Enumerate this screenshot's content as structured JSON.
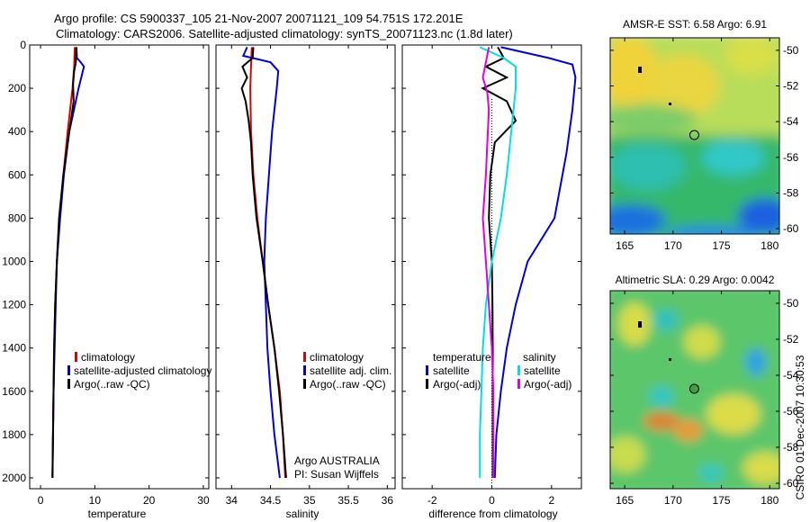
{
  "header": {
    "line1": "Argo profile: CS 5900337_105 21-Nov-2007 20071121_109 54.751S 172.201E",
    "line2": "Climatology: CARS2006. Satellite-adjusted climatology: synTS_20071123.nc (1.8d later)"
  },
  "footer_vertical": "CSIRO 01-Dec-2007 10:30:53",
  "colors": {
    "climatology": "#e00000",
    "satellite": "#0000dd",
    "argo": "#000000",
    "salinity_satellite": "#00e0e0",
    "salinity_argo": "#e000e0"
  },
  "chart_data": [
    {
      "type": "line",
      "xlabel": "temperature",
      "xlim": [
        -2,
        31
      ],
      "ylim": [
        2050,
        0
      ],
      "xticks": [
        "0",
        "10",
        "20",
        "30"
      ],
      "xtick_values": [
        0,
        10,
        20,
        30
      ],
      "yticks": [
        "0",
        "200",
        "400",
        "600",
        "800",
        "1000",
        "1200",
        "1400",
        "1600",
        "1800",
        "2000"
      ],
      "ytick_values": [
        0,
        200,
        400,
        600,
        800,
        1000,
        1200,
        1400,
        1600,
        1800,
        2000
      ],
      "legend": [
        "climatology",
        "satellite-adjusted climatology",
        "Argo(..raw -QC)"
      ],
      "series": [
        {
          "name": "climatology",
          "depth": [
            10,
            100,
            200,
            400,
            600,
            800,
            1000,
            1200,
            1400,
            1600,
            1800,
            2000
          ],
          "values": [
            6.3,
            6.2,
            5.9,
            5.0,
            4.2,
            3.5,
            3.0,
            2.7,
            2.5,
            2.4,
            2.3,
            2.2
          ]
        },
        {
          "name": "satellite-adjusted climatology",
          "depth": [
            10,
            60,
            80,
            100,
            150,
            200,
            400,
            600,
            800,
            1000,
            1200,
            1400,
            1600,
            1800,
            2000
          ],
          "values": [
            6.6,
            6.7,
            7.4,
            8.0,
            7.5,
            7.0,
            5.3,
            4.3,
            3.6,
            3.0,
            2.8,
            2.6,
            2.4,
            2.3,
            2.2
          ]
        },
        {
          "name": "Argo(..raw -QC)",
          "depth": [
            10,
            80,
            120,
            180,
            260,
            350,
            450,
            600,
            800,
            1000,
            1200,
            1400,
            1600,
            1800,
            2000
          ],
          "values": [
            6.6,
            6.5,
            6.2,
            6.0,
            6.1,
            5.6,
            5.0,
            4.2,
            3.4,
            3.0,
            2.7,
            2.5,
            2.4,
            2.3,
            2.2
          ]
        }
      ]
    },
    {
      "type": "line",
      "xlabel": "salinity",
      "xlim": [
        33.8,
        36.1
      ],
      "ylim": [
        2050,
        0
      ],
      "xticks": [
        "34",
        "34.5",
        "35",
        "35.5",
        "36"
      ],
      "xtick_values": [
        34,
        34.5,
        35,
        35.5,
        36
      ],
      "legend": [
        "climatology",
        "satellite adj. clim.",
        "Argo(..raw -QC)"
      ],
      "annotations": [
        "Argo AUSTRALIA",
        "PI: Susan Wijffels"
      ],
      "series": [
        {
          "name": "climatology",
          "depth": [
            10,
            100,
            200,
            400,
            600,
            800,
            1000,
            1200,
            1400,
            1600,
            1800,
            2000
          ],
          "values": [
            34.26,
            34.25,
            34.24,
            34.25,
            34.28,
            34.33,
            34.4,
            34.47,
            34.55,
            34.62,
            34.66,
            34.69
          ]
        },
        {
          "name": "satellite adj. clim.",
          "depth": [
            10,
            50,
            80,
            120,
            200,
            400,
            600,
            800,
            1000,
            1200,
            1400,
            1600,
            1800,
            2000
          ],
          "values": [
            34.2,
            34.15,
            34.5,
            34.6,
            34.58,
            34.52,
            34.48,
            34.44,
            34.42,
            34.44,
            34.46,
            34.5,
            34.55,
            34.62
          ]
        },
        {
          "name": "Argo(..raw -QC)",
          "depth": [
            10,
            60,
            100,
            150,
            200,
            260,
            350,
            450,
            600,
            800,
            1000,
            1200,
            1400,
            1600,
            1800,
            2000
          ],
          "values": [
            34.28,
            34.27,
            34.14,
            34.2,
            34.13,
            34.18,
            34.22,
            34.25,
            34.27,
            34.32,
            34.4,
            34.47,
            34.55,
            34.61,
            34.66,
            34.7
          ]
        }
      ]
    },
    {
      "type": "line",
      "xlabel": "difference from climatology",
      "xlim": [
        -3,
        3
      ],
      "ylim": [
        2050,
        0
      ],
      "xticks": [
        "-2",
        "0",
        "2"
      ],
      "xtick_values": [
        -2,
        0,
        2
      ],
      "legend_titles": [
        "temperature",
        "salinity"
      ],
      "legend": [
        "satellite",
        "Argo(-adj)",
        "satellite",
        "Argo(-adj)"
      ],
      "series": [
        {
          "name": "temperature satellite",
          "depth": [
            10,
            60,
            90,
            150,
            300,
            500,
            800,
            1000,
            1200,
            1400,
            1600,
            1800,
            2000
          ],
          "values": [
            0.3,
            1.9,
            2.7,
            2.8,
            2.7,
            2.5,
            2.1,
            1.2,
            0.8,
            0.5,
            0.3,
            0.15,
            0.1
          ]
        },
        {
          "name": "temperature Argo(-adj)",
          "depth": [
            10,
            60,
            100,
            150,
            200,
            260,
            350,
            450,
            600,
            800,
            1000,
            1200,
            1400,
            1600,
            1800,
            2000
          ],
          "values": [
            0.2,
            0.4,
            -0.2,
            0.5,
            -0.3,
            0.5,
            0.8,
            0.1,
            -0.05,
            -0.1,
            0.0,
            0.02,
            0.03,
            0.03,
            0.03,
            0.03
          ]
        },
        {
          "name": "salinity satellite",
          "depth": [
            10,
            60,
            100,
            200,
            400,
            600,
            800,
            1000,
            1200,
            1400,
            1600,
            1800,
            2000
          ],
          "values": [
            -0.4,
            0.4,
            0.8,
            0.8,
            0.65,
            0.5,
            0.3,
            0.0,
            -0.2,
            -0.3,
            -0.35,
            -0.4,
            -0.4
          ]
        },
        {
          "name": "salinity Argo(-adj)",
          "depth": [
            10,
            80,
            150,
            220,
            300,
            450,
            600,
            800,
            1000,
            1200,
            1400,
            1600,
            1800,
            2000
          ],
          "values": [
            -0.1,
            -0.2,
            -0.3,
            -0.15,
            -0.1,
            -0.15,
            -0.2,
            -0.3,
            -0.2,
            -0.1,
            0.0,
            0.05,
            0.05,
            0.05
          ]
        }
      ]
    },
    {
      "type": "heatmap",
      "title": "AMSR-E SST: 6.58 Argo: 6.91",
      "xlim": [
        163.5,
        181
      ],
      "ylim": [
        -60.3,
        -49.3
      ],
      "xticks": [
        "165",
        "170",
        "175",
        "180"
      ],
      "xtick_values": [
        165,
        170,
        175,
        180
      ],
      "yticks": [
        "-50",
        "-52",
        "-54",
        "-56",
        "-58",
        "-60"
      ],
      "ytick_values": [
        -50,
        -52,
        -54,
        -56,
        -58,
        -60
      ],
      "marker": {
        "lon": 172.2,
        "lat": -54.75
      }
    },
    {
      "type": "heatmap",
      "title": "Altimetric SLA: 0.29 Argo: 0.0042",
      "xlim": [
        163.5,
        181
      ],
      "ylim": [
        -60.3,
        -49.3
      ],
      "xticks": [
        "165",
        "170",
        "175",
        "180"
      ],
      "xtick_values": [
        165,
        170,
        175,
        180
      ],
      "yticks": [
        "-50",
        "-52",
        "-54",
        "-56",
        "-58",
        "-60"
      ],
      "ytick_values": [
        -50,
        -52,
        -54,
        -56,
        -58,
        -60
      ],
      "marker": {
        "lon": 172.2,
        "lat": -54.75
      }
    }
  ]
}
